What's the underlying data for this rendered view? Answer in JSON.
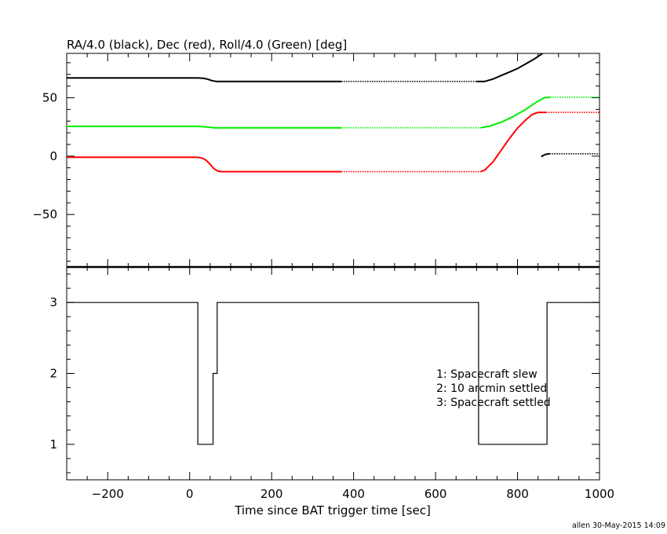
{
  "chart_data": [
    {
      "type": "line",
      "title": "RA/4.0 (black), Dec (red), Roll/4.0 (Green) [deg]",
      "xlim": [
        -300,
        1000
      ],
      "ylim": [
        -95,
        88
      ],
      "yticks": [
        50,
        0,
        -50
      ],
      "ytick_labels": [
        "50",
        "0",
        "−50"
      ],
      "grid": false,
      "series": [
        {
          "name": "RA/4.0",
          "color": "#000000",
          "segments": [
            {
              "style": "solid",
              "points": [
                [
                  -300,
                  67
                ],
                [
                  20,
                  67
                ],
                [
                  35,
                  66.6
                ],
                [
                  45,
                  65.8
                ],
                [
                  55,
                  64.6
                ],
                [
                  65,
                  64
                ],
                [
                  100,
                  64
                ],
                [
                  370,
                  64
                ]
              ]
            },
            {
              "style": "dotted",
              "points": [
                [
                  370,
                  64
                ],
                [
                  700,
                  64
                ]
              ]
            },
            {
              "style": "solid",
              "points": [
                [
                  700,
                  64
                ],
                [
                  720,
                  64
                ],
                [
                  740,
                  66
                ],
                [
                  760,
                  69
                ],
                [
                  780,
                  72
                ],
                [
                  800,
                  75
                ],
                [
                  820,
                  79
                ],
                [
                  840,
                  83
                ],
                [
                  855,
                  86.5
                ],
                [
                  865,
                  89
                ]
              ]
            },
            {
              "style": "solid",
              "points": [
                [
                  858,
                  -0.5
                ],
                [
                  862,
                  0.5
                ],
                [
                  868,
                  1.5
                ],
                [
                  878,
                  2
                ]
              ]
            },
            {
              "style": "dotted",
              "points": [
                [
                  878,
                  2
                ],
                [
                  1000,
                  2
                ]
              ]
            }
          ]
        },
        {
          "name": "Dec",
          "color": "#ff0000",
          "segments": [
            {
              "style": "solid",
              "points": [
                [
                  -300,
                  -1
                ],
                [
                  20,
                  -1
                ],
                [
                  30,
                  -1.6
                ],
                [
                  40,
                  -3.5
                ],
                [
                  50,
                  -7
                ],
                [
                  60,
                  -11
                ],
                [
                  70,
                  -13
                ],
                [
                  80,
                  -13.3
                ],
                [
                  370,
                  -13.3
                ]
              ]
            },
            {
              "style": "dotted",
              "points": [
                [
                  370,
                  -13.3
                ],
                [
                  710,
                  -13.3
                ]
              ]
            },
            {
              "style": "solid",
              "points": [
                [
                  710,
                  -13.3
                ],
                [
                  720,
                  -12
                ],
                [
                  740,
                  -5
                ],
                [
                  760,
                  5
                ],
                [
                  780,
                  15
                ],
                [
                  800,
                  24
                ],
                [
                  820,
                  31
                ],
                [
                  835,
                  35.5
                ],
                [
                  850,
                  37.5
                ],
                [
                  870,
                  37.5
                ]
              ]
            },
            {
              "style": "dotted",
              "points": [
                [
                  870,
                  37.5
                ],
                [
                  1000,
                  37.5
                ]
              ]
            }
          ]
        },
        {
          "name": "Roll/4.0",
          "color": "#00ee00",
          "segments": [
            {
              "style": "solid",
              "points": [
                [
                  -300,
                  25.5
                ],
                [
                  20,
                  25.5
                ],
                [
                  40,
                  25
                ],
                [
                  60,
                  24.3
                ],
                [
                  100,
                  24.3
                ],
                [
                  370,
                  24.3
                ]
              ]
            },
            {
              "style": "dotted",
              "points": [
                [
                  370,
                  24.3
                ],
                [
                  710,
                  24.3
                ]
              ]
            },
            {
              "style": "solid",
              "points": [
                [
                  710,
                  24.3
                ],
                [
                  730,
                  25.5
                ],
                [
                  760,
                  29
                ],
                [
                  790,
                  34
                ],
                [
                  820,
                  40
                ],
                [
                  845,
                  46
                ],
                [
                  865,
                  50
                ],
                [
                  880,
                  50.5
                ]
              ]
            },
            {
              "style": "dotted",
              "points": [
                [
                  880,
                  50.5
                ],
                [
                  1000,
                  50.5
                ]
              ]
            }
          ]
        }
      ]
    },
    {
      "type": "line",
      "title": "",
      "xlabel": "Time since BAT trigger time [sec]",
      "xlim": [
        -300,
        1000
      ],
      "ylim": [
        0.5,
        3.5
      ],
      "xticks": [
        -200,
        0,
        200,
        400,
        600,
        800,
        1000
      ],
      "xtick_labels": [
        "−200",
        "0",
        "200",
        "400",
        "600",
        "800",
        "1000"
      ],
      "yticks": [
        3,
        2,
        1
      ],
      "ytick_labels": [
        "3",
        "2",
        "1"
      ],
      "grid": false,
      "series": [
        {
          "color": "#000000",
          "step_points": [
            [
              -300,
              3
            ],
            [
              20,
              3
            ],
            [
              20,
              1
            ],
            [
              57,
              1
            ],
            [
              57,
              2
            ],
            [
              67,
              2
            ],
            [
              67,
              3
            ],
            [
              705,
              3
            ],
            [
              705,
              1
            ],
            [
              872,
              1
            ],
            [
              872,
              3
            ],
            [
              1000,
              3
            ]
          ]
        }
      ],
      "legend": [
        "1: Spacecraft slew",
        "2: 10 arcmin settled",
        "3: Spacecraft settled"
      ]
    }
  ],
  "footer": {
    "credit": "allen 30-May-2015 14:09"
  }
}
